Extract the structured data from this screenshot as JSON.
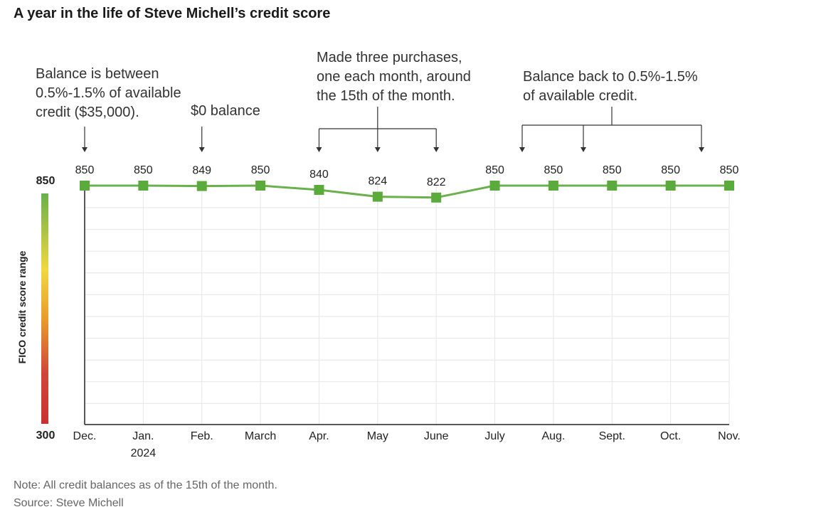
{
  "chart_data": {
    "type": "line",
    "title": "A year in the life of Steve Michell’s credit score",
    "ylabel": "FICO credit score range",
    "ylim": [
      300,
      850
    ],
    "y_ticks": [
      "850",
      "300"
    ],
    "categories": [
      "Dec.",
      "Jan.",
      "Feb.",
      "March",
      "Apr.",
      "May",
      "June",
      "July",
      "Aug.",
      "Sept.",
      "Oct.",
      "Nov."
    ],
    "category_sublabels": [
      "",
      "2024",
      "",
      "",
      "",
      "",
      "",
      "",
      "",
      "",
      "",
      ""
    ],
    "series": [
      {
        "name": "Credit score",
        "values": [
          850,
          850,
          849,
          850,
          840,
          824,
          822,
          850,
          850,
          850,
          850,
          850
        ]
      }
    ],
    "line_color": "#6ab04c",
    "marker_color": "#5aaa3c",
    "gradient_colors": [
      "#6ab04c",
      "#f1d840",
      "#e89a2c",
      "#d0463a",
      "#c83232"
    ],
    "grid": true,
    "annotations": [
      {
        "lines": [
          "Balance is between",
          "0.5%-1.5% of available",
          "credit ($35,000)."
        ]
      },
      {
        "lines": [
          "$0 balance"
        ]
      },
      {
        "lines": [
          "Made three purchases,",
          "one each month, around",
          "the 15th of the month."
        ]
      },
      {
        "lines": [
          "Balance back to 0.5%-1.5%",
          "of available credit."
        ]
      }
    ]
  },
  "footer": {
    "note": "Note: All credit balances as of the 15th of the month.",
    "source": "Source: Steve Michell"
  }
}
